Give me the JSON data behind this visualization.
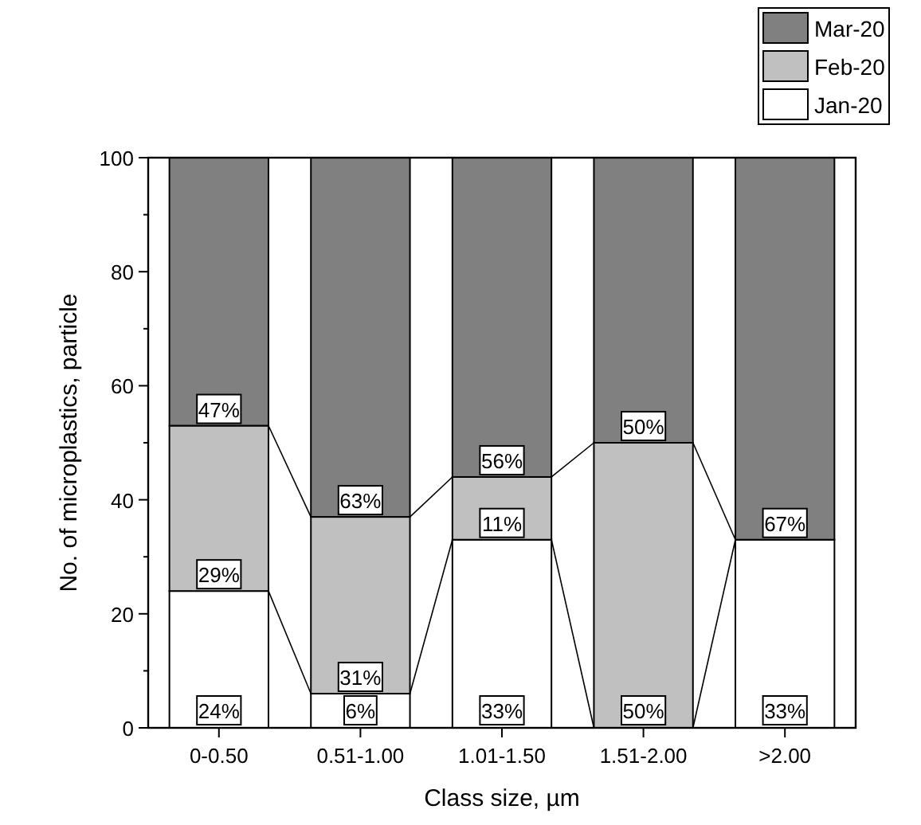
{
  "chart_data": {
    "type": "bar",
    "stacked": true,
    "xlabel": "Class size, µm",
    "ylabel": "No. of microplastics, particle",
    "categories": [
      "0-0.50",
      "0.51-1.00",
      "1.01-1.50",
      "1.51-2.00",
      ">2.00"
    ],
    "series": [
      {
        "name": "Jan-20",
        "color": "#ffffff",
        "values": [
          24,
          6,
          33,
          0,
          33
        ],
        "value_labels": [
          "24%",
          "6%",
          "33%",
          null,
          "33%"
        ]
      },
      {
        "name": "Feb-20",
        "color": "#c0c0c0",
        "values": [
          29,
          31,
          11,
          50,
          0
        ],
        "value_labels": [
          "29%",
          "31%",
          "11%",
          "50%",
          null
        ]
      },
      {
        "name": "Mar-20",
        "color": "#808080",
        "values": [
          47,
          63,
          56,
          50,
          67
        ],
        "value_labels": [
          "47%",
          "63%",
          "56%",
          "50%",
          "67%"
        ]
      }
    ],
    "ylim": [
      0,
      100
    ],
    "yticks": [
      0,
      {
        "value": 10,
        "label": null
      },
      20,
      {
        "value": 30,
        "label": null
      },
      40,
      {
        "value": 50,
        "label": null
      },
      60,
      {
        "value": 70,
        "label": null
      },
      80,
      {
        "value": 90,
        "label": null
      },
      100
    ],
    "legend": "top right",
    "grid": false
  }
}
